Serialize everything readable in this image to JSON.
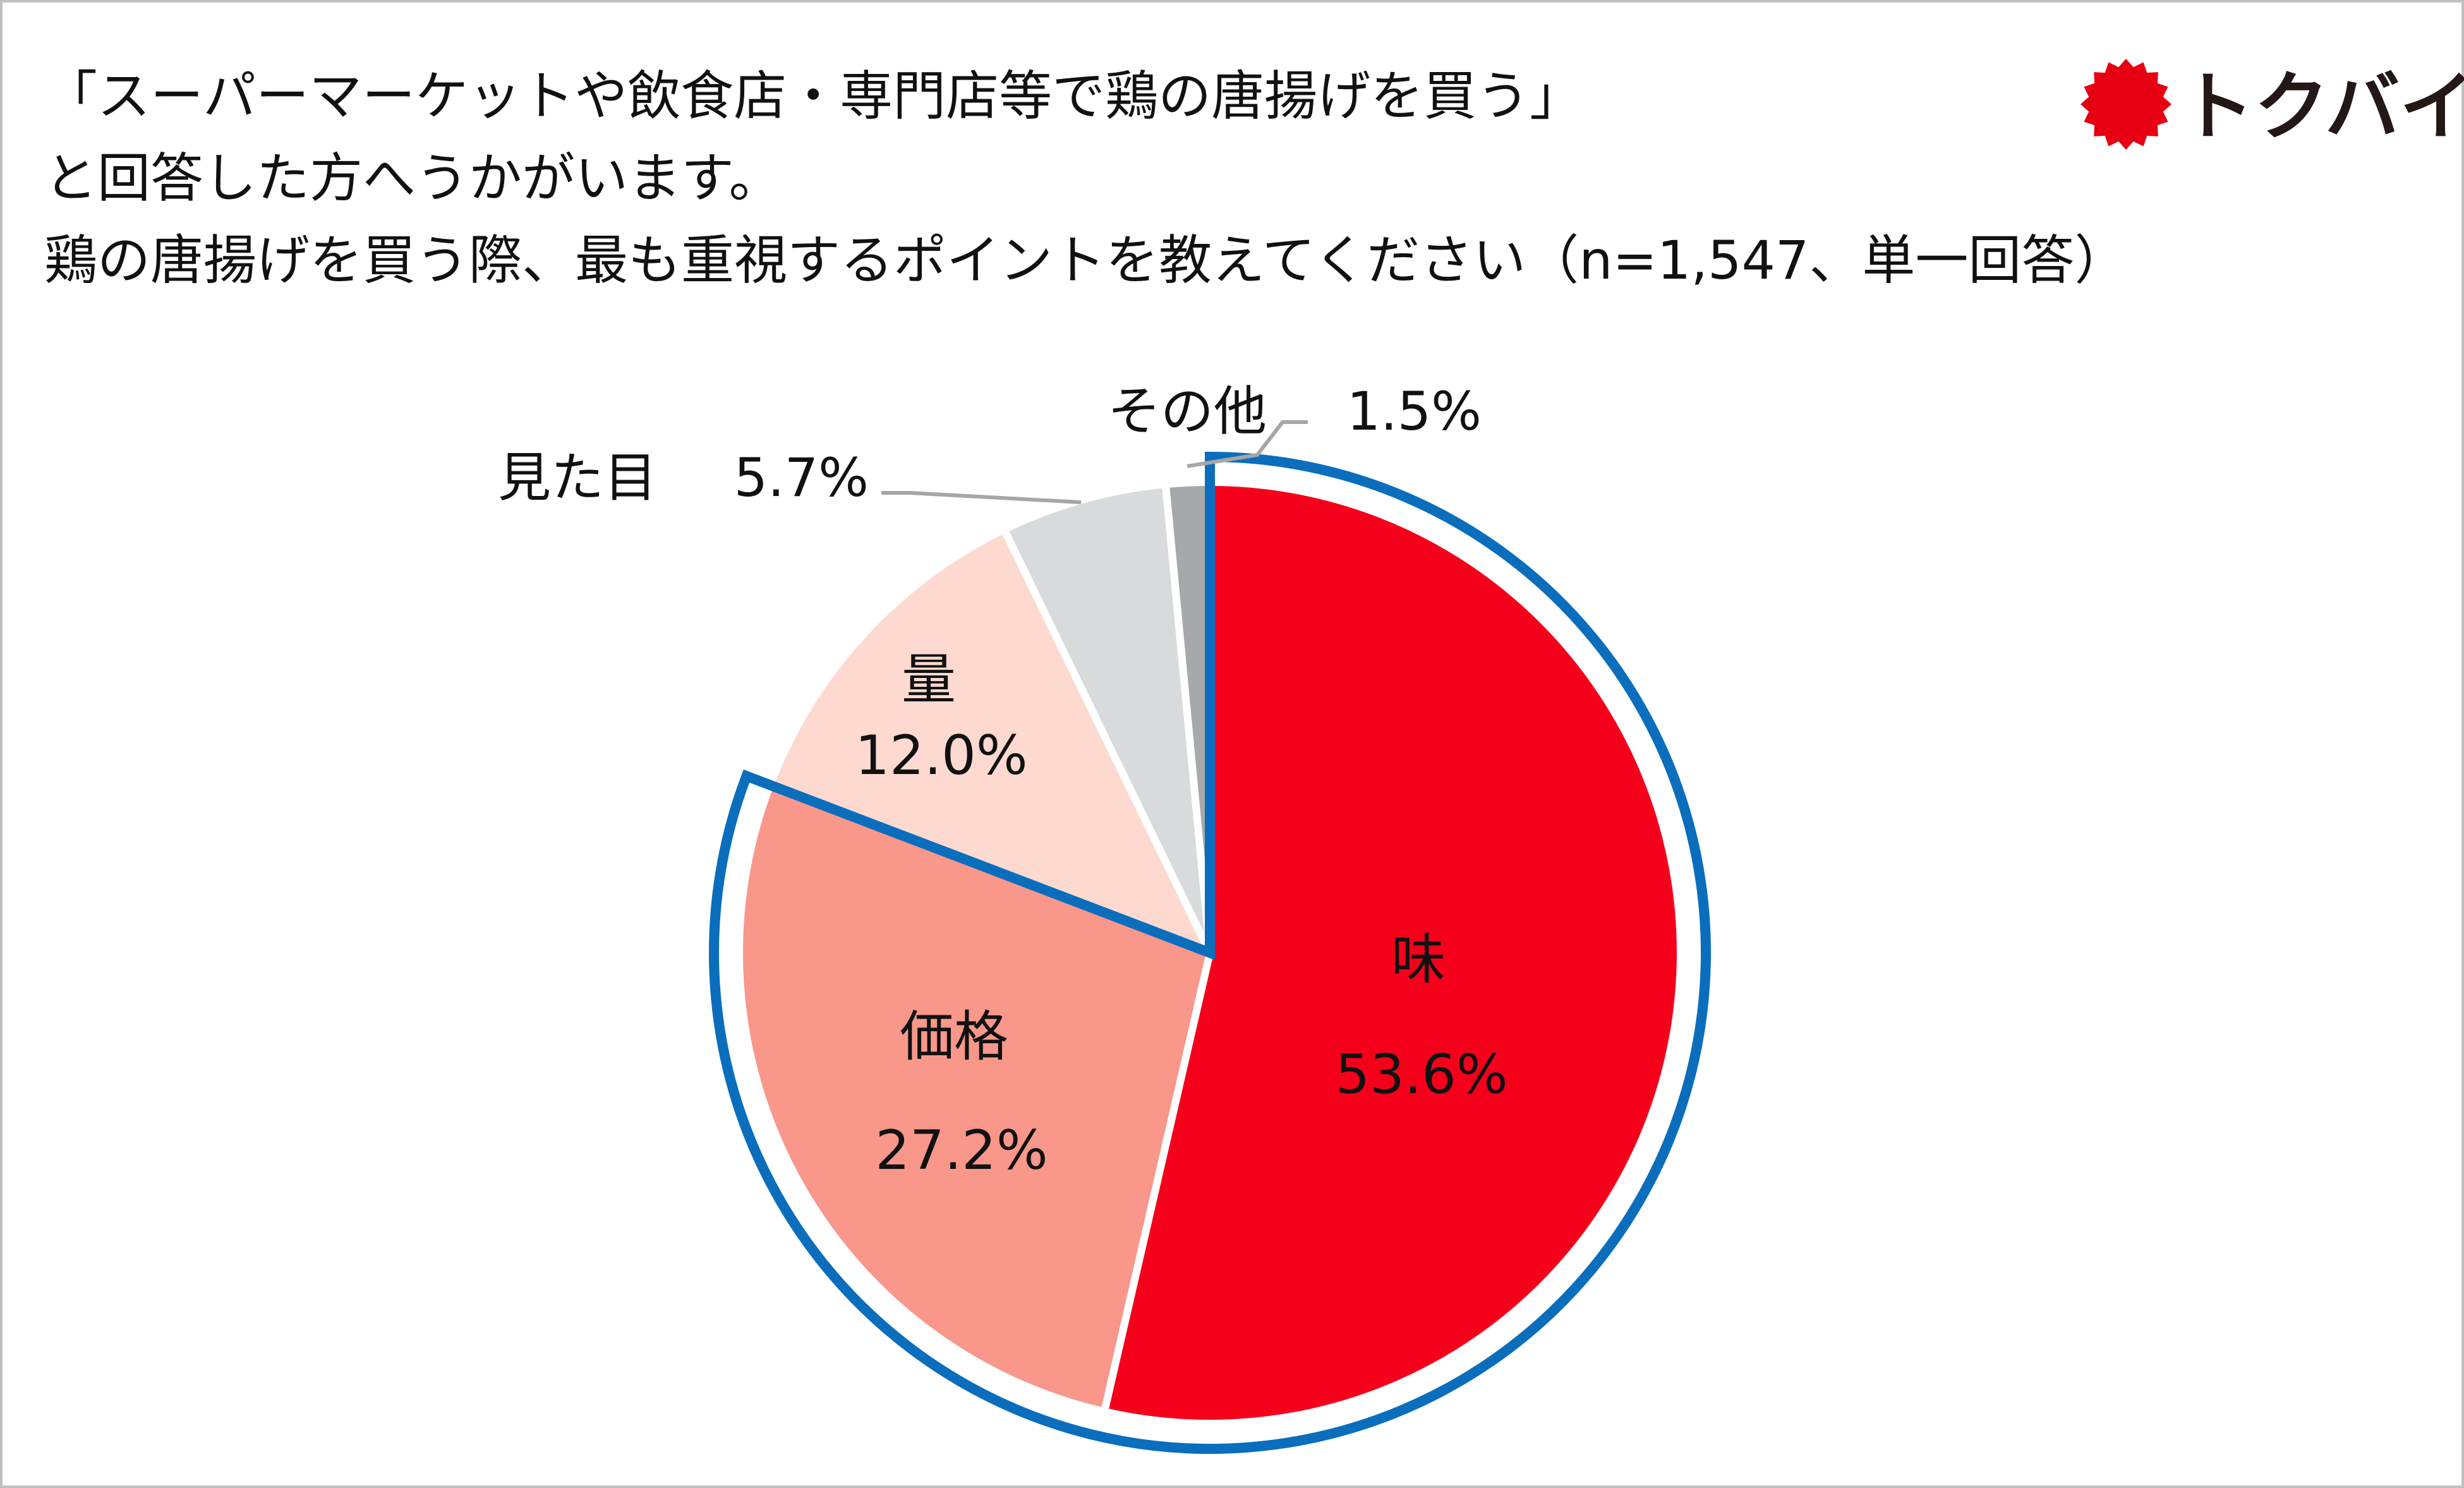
{
  "title": {
    "line1": "「スーパーマーケットや飲食店・専門店等で鶏の唐揚げを買う」",
    "line2": "と回答した方へうかがいます。",
    "line3": "鶏の唐揚げを買う際、最も重視するポイントを教えてください（n=1,547、単一回答）"
  },
  "logo": {
    "text": "トクバイ",
    "color": "#E60012"
  },
  "chart_data": {
    "type": "pie",
    "start_angle_deg": 0,
    "direction": "clockwise",
    "slices": [
      {
        "label": "味",
        "value": 53.6,
        "value_label": "53.6%",
        "color": "#F5001B"
      },
      {
        "label": "価格",
        "value": 27.2,
        "value_label": "27.2%",
        "color": "#F9978A"
      },
      {
        "label": "量",
        "value": 12.0,
        "value_label": "12.0%",
        "color": "#FDD9CF"
      },
      {
        "label": "見た目",
        "value": 5.7,
        "value_label": "5.7%",
        "color": "#D7DBDC"
      },
      {
        "label": "その他",
        "value": 1.5,
        "value_label": "1.5%",
        "color": "#A6A9AB"
      }
    ],
    "highlight": {
      "slices": [
        "味",
        "価格"
      ],
      "color": "#0A6EBD"
    }
  }
}
